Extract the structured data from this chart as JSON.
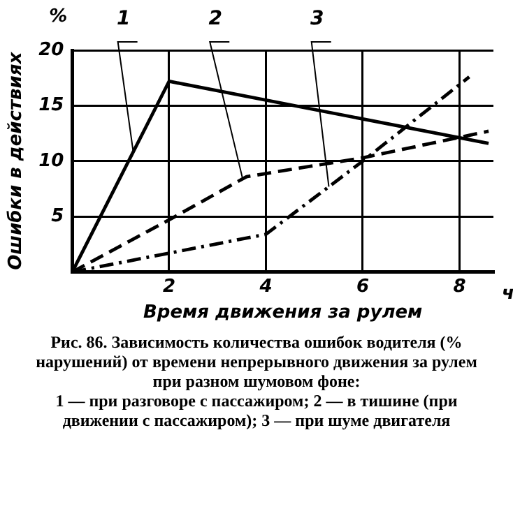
{
  "chart_data": {
    "type": "line",
    "title": "Рис. 86. Зависимость количества ошибок водителя (% нарушений) от времени непрерывного движения за рулем при разном шумовом фоне:",
    "subtitle": "1 — при разговоре с пассажиром; 2 — в тишине (при движении с пассажиром); 3 — при шуме двигателя",
    "xlabel": "Время движения за рулем",
    "ylabel": "Ошибки в действиях",
    "annotations": [
      "%",
      "ч"
    ],
    "series": [
      {
        "name": "1",
        "color": "#000000",
        "line_style": "solid",
        "x": [
          0,
          2,
          8.6
        ],
        "values": [
          0,
          17.2,
          11.6
        ]
      },
      {
        "name": "2",
        "color": "#000000",
        "line_style": "dashed",
        "x": [
          0,
          2,
          3.6,
          6,
          8.6
        ],
        "values": [
          0,
          4.7,
          8.6,
          10.3,
          12.7
        ]
      },
      {
        "name": "3",
        "color": "#000000",
        "line_style": "dashdot",
        "x": [
          0,
          2,
          4,
          6,
          8.2
        ],
        "values": [
          0,
          1.7,
          3.4,
          10,
          17.6
        ]
      }
    ],
    "xlim": [
      0,
      8.7
    ],
    "xticks": [
      2,
      4,
      6,
      8
    ],
    "ylim": [
      0,
      20
    ],
    "yticks": [
      5,
      10,
      15,
      20
    ],
    "grid": true,
    "legend": false,
    "marker": "none"
  }
}
